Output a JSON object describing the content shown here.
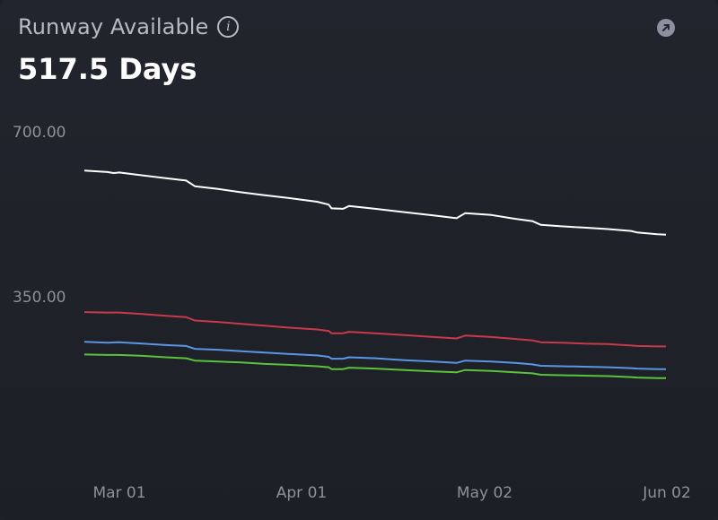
{
  "header": {
    "title": "Runway Available",
    "value": "517.5 Days",
    "info_icon": "info-icon",
    "expand_icon": "arrow-up-right-icon"
  },
  "chart_data": {
    "type": "line",
    "ylim": [
      0,
      700
    ],
    "yticks": [
      {
        "value": 700,
        "label": "700.00"
      },
      {
        "value": 350,
        "label": "350.00"
      }
    ],
    "xticks": [
      {
        "x": 0.06,
        "label": "Mar 01"
      },
      {
        "x": 0.37,
        "label": "Apr 01"
      },
      {
        "x": 0.68,
        "label": "May 02"
      },
      {
        "x": 0.99,
        "label": "Jun 02"
      }
    ],
    "grid": false,
    "series": [
      {
        "color": "#ffffff",
        "points": [
          [
            0,
            648
          ],
          [
            0.04,
            645
          ],
          [
            0.05,
            643
          ],
          [
            0.06,
            644
          ],
          [
            0.1,
            638
          ],
          [
            0.14,
            632
          ],
          [
            0.175,
            627
          ],
          [
            0.19,
            615
          ],
          [
            0.23,
            609
          ],
          [
            0.27,
            602
          ],
          [
            0.31,
            596
          ],
          [
            0.35,
            590
          ],
          [
            0.4,
            582
          ],
          [
            0.42,
            576
          ],
          [
            0.425,
            568
          ],
          [
            0.445,
            567
          ],
          [
            0.455,
            573
          ],
          [
            0.5,
            567
          ],
          [
            0.55,
            560
          ],
          [
            0.6,
            553
          ],
          [
            0.64,
            547
          ],
          [
            0.655,
            558
          ],
          [
            0.7,
            554
          ],
          [
            0.74,
            546
          ],
          [
            0.77,
            541
          ],
          [
            0.785,
            533
          ],
          [
            0.82,
            530
          ],
          [
            0.86,
            527
          ],
          [
            0.9,
            524
          ],
          [
            0.94,
            520
          ],
          [
            0.95,
            517
          ],
          [
            0.985,
            513
          ],
          [
            1,
            512
          ]
        ]
      },
      {
        "color": "#c8394a",
        "points": [
          [
            0,
            348
          ],
          [
            0.04,
            347
          ],
          [
            0.06,
            347
          ],
          [
            0.1,
            344
          ],
          [
            0.14,
            340
          ],
          [
            0.175,
            337
          ],
          [
            0.19,
            330
          ],
          [
            0.23,
            327
          ],
          [
            0.27,
            323
          ],
          [
            0.31,
            319
          ],
          [
            0.35,
            315
          ],
          [
            0.4,
            311
          ],
          [
            0.42,
            308
          ],
          [
            0.425,
            303
          ],
          [
            0.445,
            303
          ],
          [
            0.455,
            306
          ],
          [
            0.5,
            303
          ],
          [
            0.55,
            299
          ],
          [
            0.6,
            295
          ],
          [
            0.64,
            292
          ],
          [
            0.655,
            298
          ],
          [
            0.7,
            295
          ],
          [
            0.74,
            291
          ],
          [
            0.77,
            288
          ],
          [
            0.785,
            284
          ],
          [
            0.82,
            283
          ],
          [
            0.86,
            281
          ],
          [
            0.9,
            280
          ],
          [
            0.94,
            277
          ],
          [
            0.95,
            276
          ],
          [
            0.985,
            275
          ],
          [
            1,
            275
          ]
        ]
      },
      {
        "color": "#5b96e6",
        "points": [
          [
            0,
            285
          ],
          [
            0.04,
            283
          ],
          [
            0.06,
            284
          ],
          [
            0.1,
            281
          ],
          [
            0.14,
            278
          ],
          [
            0.175,
            276
          ],
          [
            0.19,
            270
          ],
          [
            0.23,
            268
          ],
          [
            0.27,
            265
          ],
          [
            0.31,
            262
          ],
          [
            0.35,
            259
          ],
          [
            0.4,
            256
          ],
          [
            0.42,
            253
          ],
          [
            0.425,
            249
          ],
          [
            0.445,
            249
          ],
          [
            0.455,
            252
          ],
          [
            0.5,
            250
          ],
          [
            0.55,
            246
          ],
          [
            0.6,
            243
          ],
          [
            0.64,
            240
          ],
          [
            0.655,
            245
          ],
          [
            0.7,
            243
          ],
          [
            0.74,
            240
          ],
          [
            0.77,
            237
          ],
          [
            0.785,
            234
          ],
          [
            0.82,
            233
          ],
          [
            0.86,
            232
          ],
          [
            0.9,
            231
          ],
          [
            0.94,
            229
          ],
          [
            0.95,
            228
          ],
          [
            0.985,
            227
          ],
          [
            1,
            227
          ]
        ]
      },
      {
        "color": "#5cc23a",
        "points": [
          [
            0,
            258
          ],
          [
            0.04,
            257
          ],
          [
            0.06,
            257
          ],
          [
            0.1,
            255
          ],
          [
            0.14,
            252
          ],
          [
            0.175,
            250
          ],
          [
            0.19,
            245
          ],
          [
            0.23,
            243
          ],
          [
            0.27,
            241
          ],
          [
            0.31,
            238
          ],
          [
            0.35,
            236
          ],
          [
            0.4,
            233
          ],
          [
            0.42,
            231
          ],
          [
            0.425,
            227
          ],
          [
            0.445,
            227
          ],
          [
            0.455,
            230
          ],
          [
            0.5,
            228
          ],
          [
            0.55,
            225
          ],
          [
            0.6,
            222
          ],
          [
            0.64,
            220
          ],
          [
            0.655,
            225
          ],
          [
            0.7,
            223
          ],
          [
            0.74,
            220
          ],
          [
            0.77,
            218
          ],
          [
            0.785,
            215
          ],
          [
            0.82,
            214
          ],
          [
            0.86,
            213
          ],
          [
            0.9,
            212
          ],
          [
            0.94,
            210
          ],
          [
            0.95,
            209
          ],
          [
            0.985,
            208
          ],
          [
            1,
            208
          ]
        ]
      }
    ]
  }
}
